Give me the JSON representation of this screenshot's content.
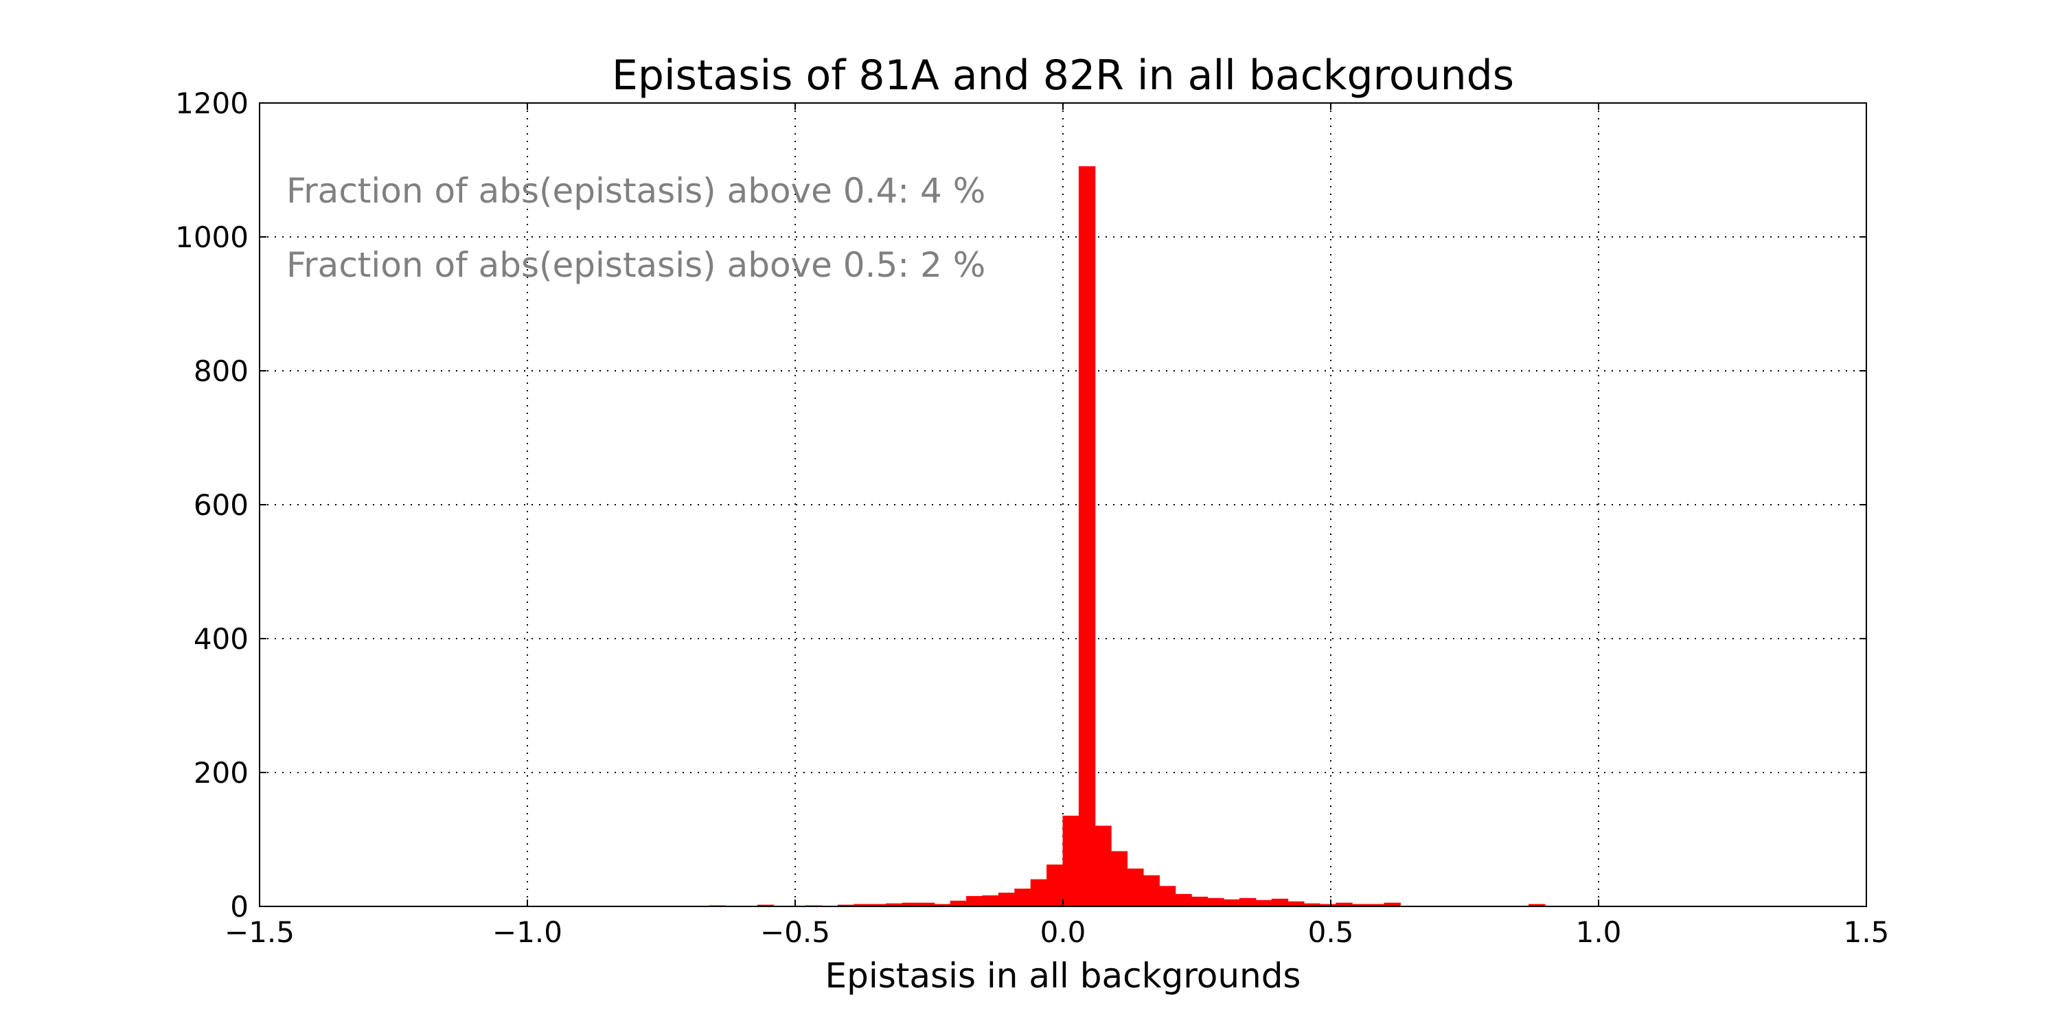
{
  "chart_data": {
    "type": "bar",
    "title": "Epistasis of 81A and 82R in all backgrounds",
    "xlabel": "Epistasis in all backgrounds",
    "ylabel": "",
    "xlim": [
      -1.5,
      1.5
    ],
    "ylim": [
      0,
      1200
    ],
    "xticks": [
      -1.5,
      -1.0,
      -0.5,
      0.0,
      0.5,
      1.0,
      1.5
    ],
    "xtick_labels": [
      "−1.5",
      "−1.0",
      "−0.5",
      "0.0",
      "0.5",
      "1.0",
      "1.5"
    ],
    "yticks": [
      0,
      200,
      400,
      600,
      800,
      1000,
      1200
    ],
    "ytick_labels": [
      "0",
      "200",
      "400",
      "600",
      "800",
      "1000",
      "1200"
    ],
    "grid": true,
    "bar_color": "#ff0000",
    "annotation_color": "#808080",
    "annotations": [
      "Fraction of abs(epistasis) above 0.4: 4 %",
      "Fraction of abs(epistasis) above 0.5: 2 %"
    ],
    "bin_width": 0.03,
    "bin_starts": [
      -0.66,
      -0.57,
      -0.48,
      -0.42,
      -0.39,
      -0.36,
      -0.33,
      -0.3,
      -0.27,
      -0.24,
      -0.21,
      -0.18,
      -0.15,
      -0.12,
      -0.09,
      -0.06,
      -0.03,
      0.0,
      0.03,
      0.06,
      0.09,
      0.12,
      0.15,
      0.18,
      0.21,
      0.24,
      0.27,
      0.3,
      0.33,
      0.36,
      0.39,
      0.42,
      0.45,
      0.48,
      0.51,
      0.54,
      0.57,
      0.6,
      0.87
    ],
    "values": [
      1,
      2,
      1,
      2,
      3,
      3,
      4,
      5,
      5,
      3,
      8,
      15,
      16,
      20,
      26,
      40,
      62,
      135,
      1105,
      120,
      82,
      56,
      46,
      30,
      18,
      14,
      12,
      10,
      12,
      9,
      11,
      7,
      4,
      3,
      5,
      3,
      3,
      5,
      3
    ]
  }
}
